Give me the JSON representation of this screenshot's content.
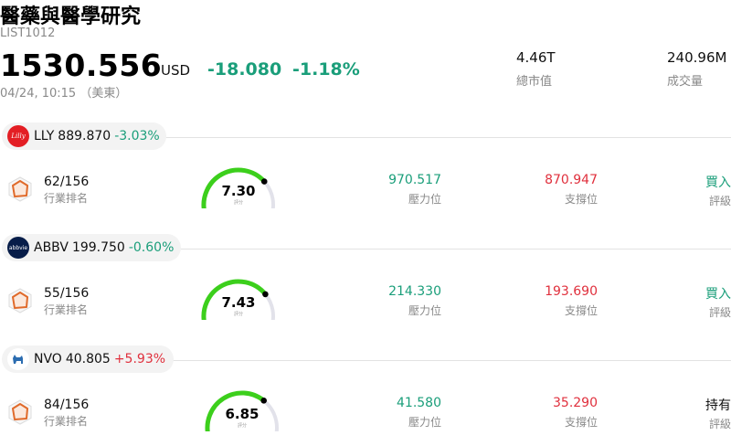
{
  "header": {
    "title": "醫藥與醫學研究",
    "code": "LIST1012",
    "price": "1530.556",
    "currency": "USD",
    "change": "-18.080",
    "change_pct": "-1.18%",
    "timestamp": "04/24, 10:15 （美東）",
    "market_cap_value": "4.46T",
    "market_cap_label": "總市值",
    "volume_value": "240.96M",
    "volume_label": "成交量"
  },
  "stocks": [
    {
      "ticker": "LLY",
      "price": "889.870",
      "change_pct": "-3.03%",
      "logo_text": "Lilly",
      "logo_color": "#e31e24",
      "rank": "62/156",
      "rank_label": "行業排名",
      "score": "7.30",
      "score_label": "評分",
      "score_fraction": 0.73,
      "resistance": "970.517",
      "resistance_label": "壓力位",
      "support": "870.947",
      "support_label": "支撐位",
      "rating": "買入",
      "rating_label": "評級",
      "rating_color": "#1a9e7a"
    },
    {
      "ticker": "ABBV",
      "price": "199.750",
      "change_pct": "-0.60%",
      "logo_text": "abbvie",
      "logo_color": "#071d49",
      "rank": "55/156",
      "rank_label": "行業排名",
      "score": "7.43",
      "score_label": "評分",
      "score_fraction": 0.743,
      "resistance": "214.330",
      "resistance_label": "壓力位",
      "support": "193.690",
      "support_label": "支撐位",
      "rating": "買入",
      "rating_label": "評級",
      "rating_color": "#1a9e7a"
    },
    {
      "ticker": "NVO",
      "price": "40.805",
      "change_pct": "+5.93%",
      "logo_text": "bull",
      "logo_color": "#ffffff",
      "rank": "84/156",
      "rank_label": "行業排名",
      "score": "6.85",
      "score_label": "評分",
      "score_fraction": 0.685,
      "resistance": "41.580",
      "resistance_label": "壓力位",
      "support": "35.290",
      "support_label": "支撐位",
      "rating": "持有",
      "rating_label": "評級",
      "rating_color": "#111111"
    }
  ]
}
